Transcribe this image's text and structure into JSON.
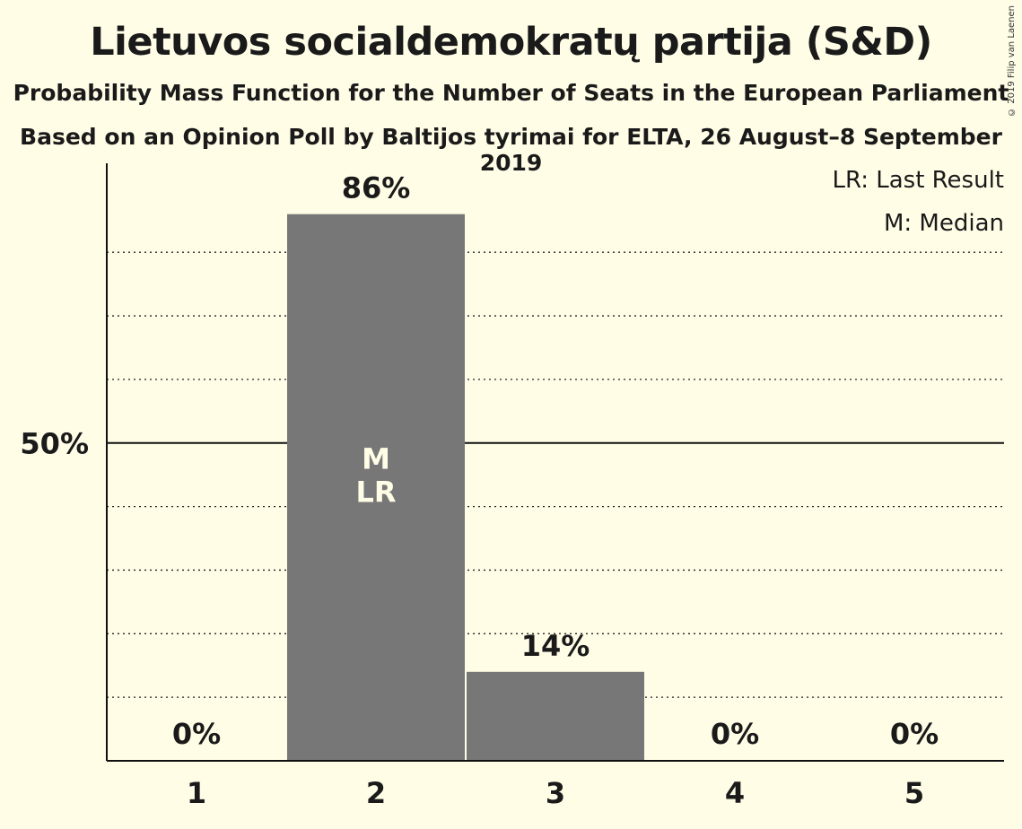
{
  "title": "Lietuvos socialdemokratų partija (S&D)",
  "subtitle": "Probability Mass Function for the Number of Seats in the European Parliament",
  "subtitle2": "Based on an Opinion Poll by Baltijos tyrimai for ELTA, 26 August–8 September 2019",
  "copyright": "© 2019 Filip van Laenen",
  "legend": [
    "LR: Last Result",
    "M: Median"
  ],
  "chart_data": {
    "type": "bar",
    "categories": [
      "1",
      "2",
      "3",
      "4",
      "5"
    ],
    "values": [
      0,
      86,
      14,
      0,
      0
    ],
    "value_labels": [
      "0%",
      "86%",
      "14%",
      "0%",
      "0%"
    ],
    "ylim": [
      0,
      94
    ],
    "gridlines": [
      10,
      20,
      30,
      40,
      50,
      60,
      70,
      80
    ],
    "y_tick_label": "50%",
    "y_tick_value": 50,
    "median_category": "2",
    "last_result_category": "2",
    "bar_color": "#777777",
    "background": "#fffde6"
  }
}
